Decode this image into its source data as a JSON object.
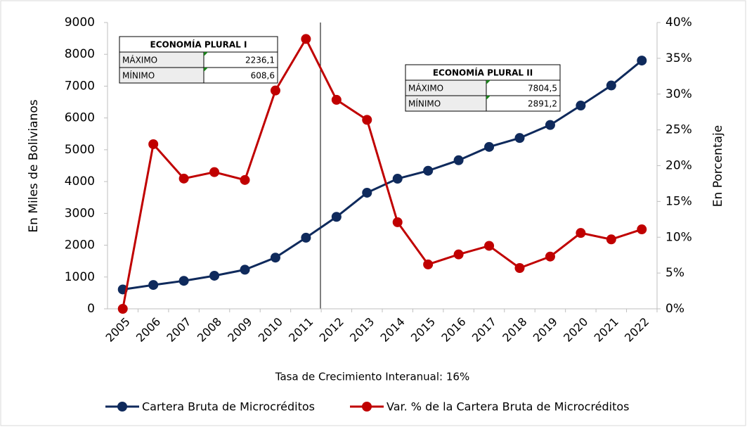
{
  "chart_data": {
    "type": "line",
    "y_axis_label": "En Miles de Bolivianos",
    "y2_axis_label": "En Porcentaje",
    "annotation": "Tasa de Crecimiento Interanual: 16%",
    "categories": [
      "2005",
      "2006",
      "2007",
      "2008",
      "2009",
      "2010",
      "2011",
      "2012",
      "2013",
      "2014",
      "2015",
      "2016",
      "2017",
      "2018",
      "2019",
      "2020",
      "2021",
      "2022"
    ],
    "series": [
      {
        "name": "Cartera Bruta de Microcréditos",
        "color": "#0f2a5c",
        "values": [
          608.6,
          750,
          880,
          1040,
          1230,
          1610,
          2236.1,
          2891.2,
          3650,
          4090,
          4340,
          4670,
          5090,
          5370,
          5780,
          6390,
          7020,
          7804.5
        ]
      },
      {
        "name": "Var. % de la Cartera Bruta de Microcréditos",
        "color": "#c00000",
        "axis": "y2",
        "values": [
          0,
          23,
          18.2,
          19.1,
          18,
          30.5,
          37.7,
          29.2,
          26.4,
          12.1,
          6.2,
          7.6,
          8.8,
          5.7,
          7.3,
          10.6,
          9.7,
          11.1
        ]
      }
    ],
    "ylim": [
      0,
      9000
    ],
    "yticks": [
      0,
      1000,
      2000,
      3000,
      4000,
      5000,
      6000,
      7000,
      8000,
      9000
    ],
    "y2lim": [
      0,
      40
    ],
    "y2ticks": [
      {
        "value": 0,
        "label": "0%"
      },
      {
        "value": 5,
        "label": "5%"
      },
      {
        "value": 10,
        "label": "10%"
      },
      {
        "value": 15,
        "label": "15%"
      },
      {
        "value": 20,
        "label": "20%"
      },
      {
        "value": 25,
        "label": "25%"
      },
      {
        "value": 30,
        "label": "30%"
      },
      {
        "value": 35,
        "label": "35%"
      },
      {
        "value": 40,
        "label": "40%"
      }
    ],
    "grid": false,
    "legend": "bottom",
    "tables": [
      {
        "title": "ECONOMÍA PLURAL I",
        "rows": [
          [
            "MÁXIMO",
            "2236,1"
          ],
          [
            "MÍNIMO",
            "608,6"
          ]
        ]
      },
      {
        "title": "ECONOMÍA PLURAL II",
        "rows": [
          [
            "MÁXIMO",
            "7804,5"
          ],
          [
            "MÍNIMO",
            "2891,2"
          ]
        ]
      }
    ]
  }
}
